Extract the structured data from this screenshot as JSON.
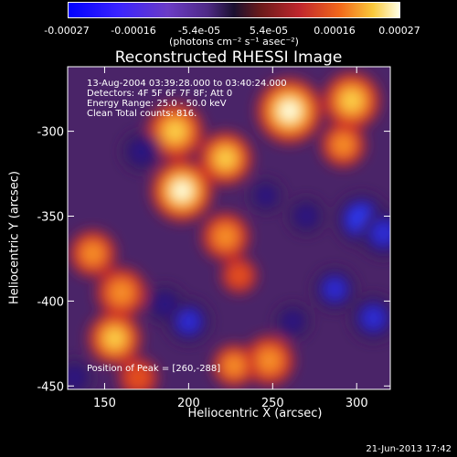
{
  "chart_data": {
    "type": "heatmap",
    "title": "Reconstructed RHESSI Image",
    "xlabel": "Heliocentric X (arcsec)",
    "ylabel": "Heliocentric Y (arcsec)",
    "xlim": [
      128,
      320
    ],
    "ylim": [
      -452,
      -262
    ],
    "xticks": [
      "150",
      "200",
      "250",
      "300"
    ],
    "yticks": [
      "-300",
      "-350",
      "-400",
      "-450"
    ],
    "xtick_values": [
      150,
      200,
      250,
      300
    ],
    "ytick_values": [
      -300,
      -350,
      -400,
      -450
    ],
    "colorbar": {
      "ticks": [
        "-0.00027",
        "-0.00016",
        "-5.4e-05",
        "5.4e-05",
        "0.00016",
        "0.00027"
      ],
      "units": "(photons cm⁻² s⁻¹ asec⁻²)",
      "range": [
        -0.00027,
        0.00027
      ],
      "colors": [
        "#0000ff",
        "#6b3cc6",
        "#1a1030",
        "#c1272d",
        "#f2681a",
        "#ffffe6"
      ]
    },
    "annotations": {
      "time": "13-Aug-2004 03:39:28.000 to 03:40:24.000",
      "detectors": "Detectors: 4F 5F 6F 7F 8F; Att 0",
      "energy": "Energy Range: 25.0 - 50.0 keV",
      "method": "Clean    Total counts: 816.",
      "peak": "Position of Peak = [260,-288]"
    },
    "sources": [
      {
        "x": 192,
        "y": -300,
        "value": 0.00022
      },
      {
        "x": 196,
        "y": -335,
        "value": 0.00025
      },
      {
        "x": 222,
        "y": -316,
        "value": 0.0002
      },
      {
        "x": 260,
        "y": -288,
        "value": 0.00027
      },
      {
        "x": 297,
        "y": -282,
        "value": 0.00022
      },
      {
        "x": 292,
        "y": -308,
        "value": 0.00015
      },
      {
        "x": 143,
        "y": -372,
        "value": 0.00016
      },
      {
        "x": 160,
        "y": -395,
        "value": 0.00018
      },
      {
        "x": 156,
        "y": -422,
        "value": 0.0002
      },
      {
        "x": 222,
        "y": -362,
        "value": 0.00017
      },
      {
        "x": 248,
        "y": -435,
        "value": 0.00018
      },
      {
        "x": 227,
        "y": -438,
        "value": 0.00014
      },
      {
        "x": 170,
        "y": -445,
        "value": 0.00012
      },
      {
        "x": 230,
        "y": -385,
        "value": 0.0001
      },
      {
        "x": 303,
        "y": -352,
        "value": -0.00024
      },
      {
        "x": 316,
        "y": -360,
        "value": -0.00022
      },
      {
        "x": 287,
        "y": -393,
        "value": -0.00018
      },
      {
        "x": 310,
        "y": -410,
        "value": -0.0002
      },
      {
        "x": 172,
        "y": -312,
        "value": -0.00016
      },
      {
        "x": 200,
        "y": -412,
        "value": -0.00019
      },
      {
        "x": 186,
        "y": -402,
        "value": -0.00015
      },
      {
        "x": 262,
        "y": -412,
        "value": -0.00013
      },
      {
        "x": 132,
        "y": -445,
        "value": -0.00014
      },
      {
        "x": 246,
        "y": -338,
        "value": -0.00012
      },
      {
        "x": 270,
        "y": -350,
        "value": -0.00014
      }
    ]
  },
  "footer": {
    "date": "21-Jun-2013 17:42"
  }
}
